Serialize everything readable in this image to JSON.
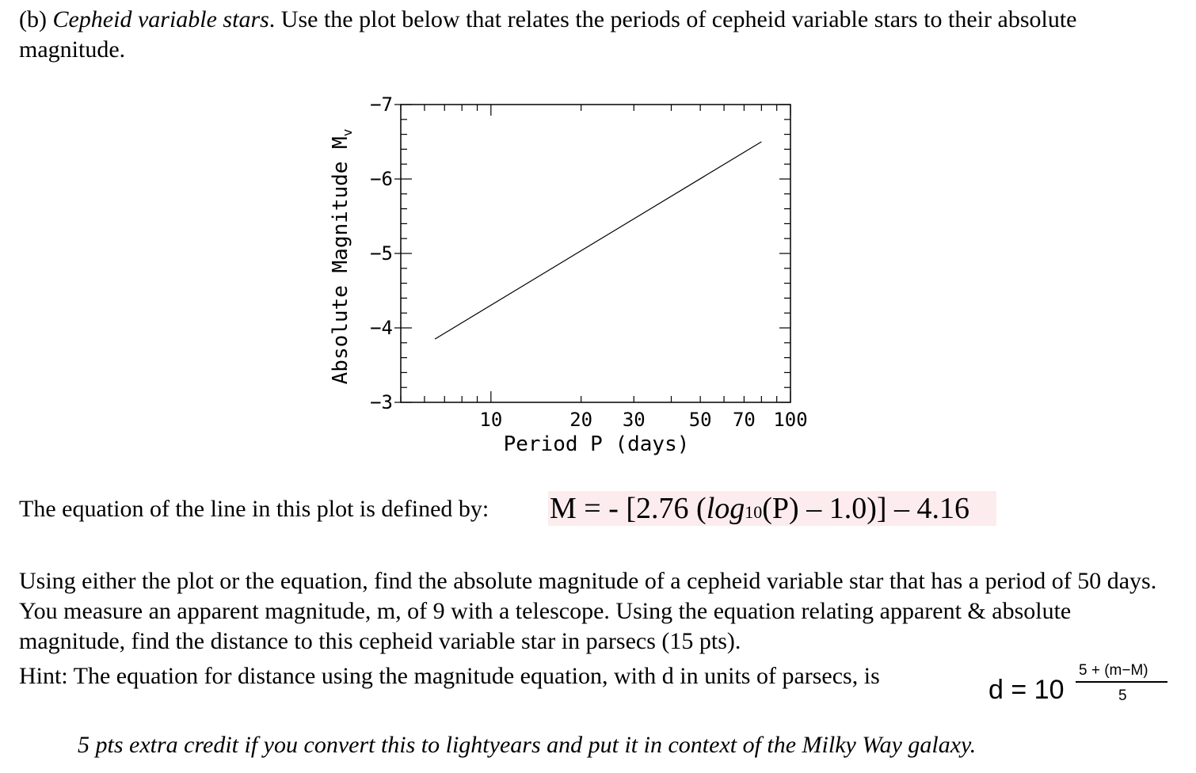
{
  "intro": {
    "label": "(b)",
    "topic": "Cepheid variable stars",
    "text": ".  Use the plot below that relates the periods of cepheid variable stars to their absolute magnitude."
  },
  "chart_data": {
    "type": "line",
    "title": "",
    "xlabel": "Period P (days)",
    "ylabel": "Absolute Magnitude M",
    "ylabel_subscript": "v",
    "xscale": "log",
    "xlim": [
      5,
      100
    ],
    "ylim": [
      -3,
      -7
    ],
    "x_ticks": [
      10,
      20,
      30,
      50,
      70,
      100
    ],
    "y_ticks": [
      -7,
      -6,
      -5,
      -4,
      -3
    ],
    "y_tick_labels": [
      "−7",
      "−6",
      "−5",
      "−4",
      "−3"
    ],
    "grid": false,
    "series": [
      {
        "x": [
          6.5,
          80
        ],
        "y": [
          -3.85,
          -6.5
        ]
      }
    ]
  },
  "equation": {
    "prefix": "The equation of the line in this plot is defined by:",
    "lhs": "M = - [2.76 (",
    "log": "log",
    "log_base": "10",
    "rhs": "(P) – 1.0)] – 4.16"
  },
  "question": "Using either the plot or the equation, find the absolute magnitude of a cepheid variable star that has a period of 50 days. You measure an apparent magnitude, m, of 9 with a telescope. Using the equation relating apparent & absolute magnitude, find the distance to this cepheid variable star in parsecs (15 pts).",
  "hint": "Hint: The equation for distance using the magnitude equation, with d in units of parsecs, is",
  "formula": {
    "lhs": "d  =  10",
    "numerator": "5 + (m−M)",
    "denominator": "5"
  },
  "extra_credit": "5 pts extra credit if you convert this to lightyears and put it in context of the Milky Way galaxy."
}
